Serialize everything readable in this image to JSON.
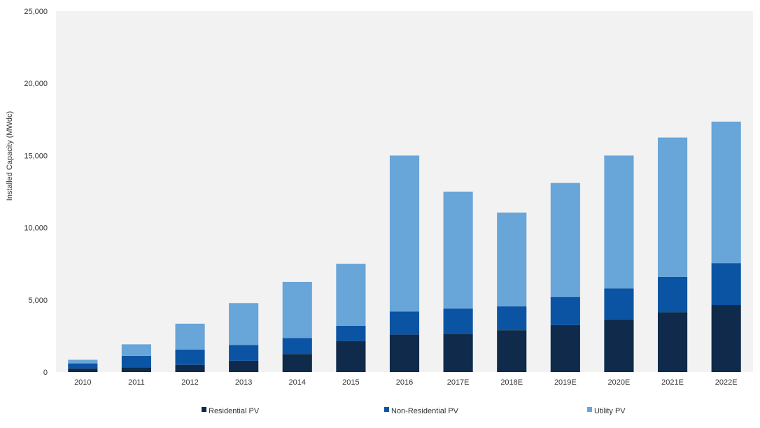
{
  "chart_data": {
    "type": "bar",
    "stacked": true,
    "title": "",
    "xlabel": "",
    "ylabel": "Installed Capacity (MWdc)",
    "ylim": [
      0,
      25000
    ],
    "yticks": [
      "0",
      "5,000",
      "10,000",
      "15,000",
      "20,000",
      "25,000"
    ],
    "ytick_values": [
      0,
      5000,
      10000,
      15000,
      20000,
      25000
    ],
    "grid": false,
    "legend_position": "bottom",
    "plot_background": "#f2f2f2",
    "categories": [
      "2010",
      "2011",
      "2012",
      "2013",
      "2014",
      "2015",
      "2016",
      "2017E",
      "2018E",
      "2019E",
      "2020E",
      "2021E",
      "2022E"
    ],
    "series": [
      {
        "name": "Residential PV",
        "color": "#0f2a4a",
        "values": [
          250,
          320,
          500,
          780,
          1250,
          2150,
          2600,
          2650,
          2900,
          3250,
          3650,
          4150,
          4650
        ]
      },
      {
        "name": "Non-Residential PV",
        "color": "#0b54a4",
        "values": [
          350,
          800,
          1050,
          1100,
          1100,
          1050,
          1600,
          1750,
          1650,
          1950,
          2150,
          2450,
          2900
        ]
      },
      {
        "name": "Utility PV",
        "color": "#68a5d8",
        "values": [
          250,
          800,
          1800,
          2900,
          3900,
          4300,
          10800,
          8100,
          6500,
          7900,
          9200,
          9650,
          9800
        ]
      }
    ]
  }
}
